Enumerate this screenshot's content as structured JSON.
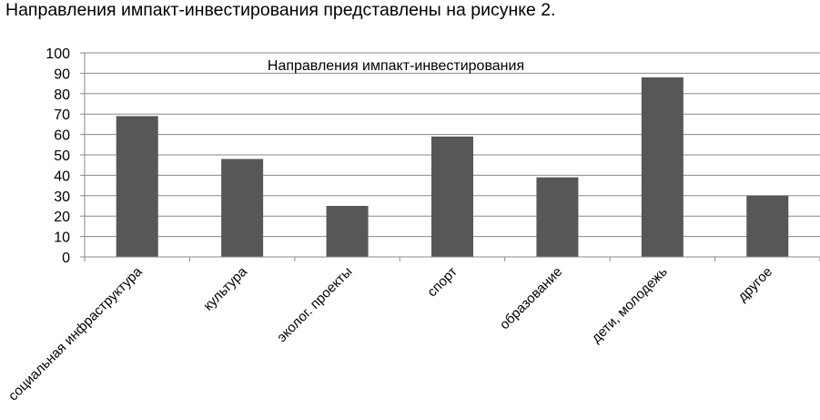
{
  "intro_text": "Направления импакт-инвестирования представлены на рисунке 2.",
  "chart_data": {
    "type": "bar",
    "title": "Направления импакт-инвестирования",
    "categories": [
      "социальная инфраструктура",
      "культура",
      "эколог. проекты",
      "спорт",
      "образование",
      "дети, молодежь",
      "другое"
    ],
    "values": [
      69,
      48,
      25,
      59,
      39,
      88,
      30
    ],
    "ylim": [
      0,
      100
    ],
    "yticks": [
      0,
      10,
      20,
      30,
      40,
      50,
      60,
      70,
      80,
      90,
      100
    ],
    "xlabel": "",
    "ylabel": "",
    "grid": true,
    "legend": "none",
    "bar_color": "#575757"
  }
}
